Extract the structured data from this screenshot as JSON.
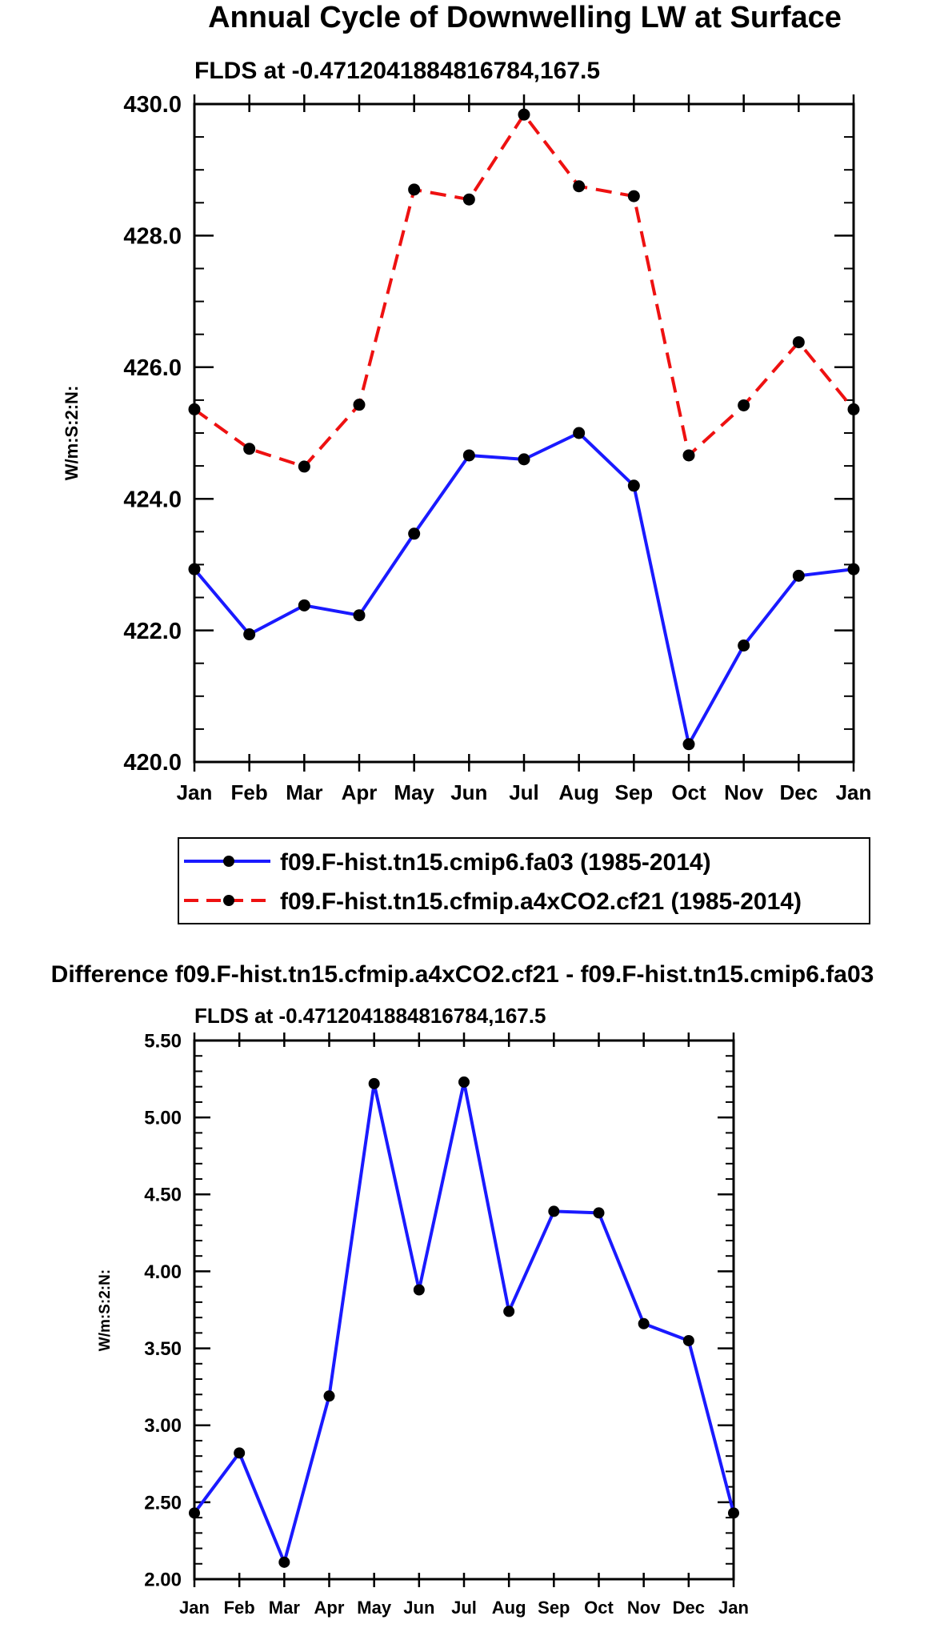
{
  "page_title": "Annual Cycle of Downwelling LW at Surface",
  "chart_data": [
    {
      "type": "line",
      "title": "FLDS at -0.4712041884816784,167.5",
      "xlabel": "",
      "ylabel": "W/m:S:2:N:",
      "categories": [
        "Jan",
        "Feb",
        "Mar",
        "Apr",
        "May",
        "Jun",
        "Jul",
        "Aug",
        "Sep",
        "Oct",
        "Nov",
        "Dec",
        "Jan"
      ],
      "ylim": [
        420,
        430
      ],
      "yticks": [
        420,
        422,
        424,
        426,
        428,
        430
      ],
      "ytick_labels": [
        "420.0",
        "422.0",
        "424.0",
        "426.0",
        "428.0",
        "430.0"
      ],
      "series": [
        {
          "name": "f09.F-hist.tn15.cmip6.fa03 (1985-2014)",
          "color": "#1a1aff",
          "dash": "solid",
          "values": [
            422.93,
            421.94,
            422.38,
            422.23,
            423.47,
            424.66,
            424.6,
            425.0,
            424.2,
            420.27,
            421.77,
            422.83,
            422.93
          ]
        },
        {
          "name": "f09.F-hist.tn15.cfmip.a4xCO2.cf21 (1985-2014)",
          "color": "#ee1111",
          "dash": "dashed",
          "values": [
            425.36,
            424.76,
            424.49,
            425.43,
            428.7,
            428.55,
            429.84,
            428.75,
            428.6,
            424.66,
            425.42,
            426.38,
            425.36
          ]
        }
      ]
    },
    {
      "type": "line",
      "suptitle": "Difference f09.F-hist.tn15.cfmip.a4xCO2.cf21 - f09.F-hist.tn15.cmip6.fa03",
      "title": "FLDS at -0.4712041884816784,167.5",
      "xlabel": "",
      "ylabel": "W/m:S:2:N:",
      "categories": [
        "Jan",
        "Feb",
        "Mar",
        "Apr",
        "May",
        "Jun",
        "Jul",
        "Aug",
        "Sep",
        "Oct",
        "Nov",
        "Dec",
        "Jan"
      ],
      "ylim": [
        2.0,
        5.5
      ],
      "yticks": [
        2.0,
        2.5,
        3.0,
        3.5,
        4.0,
        4.5,
        5.0,
        5.5
      ],
      "ytick_labels": [
        "2.00",
        "2.50",
        "3.00",
        "3.50",
        "4.00",
        "4.50",
        "5.00",
        "5.50"
      ],
      "series": [
        {
          "name": "difference",
          "color": "#1a1aff",
          "dash": "solid",
          "values": [
            2.43,
            2.82,
            2.11,
            3.19,
            5.22,
            3.88,
            5.23,
            3.74,
            4.39,
            4.38,
            3.66,
            3.55,
            2.43
          ]
        }
      ]
    }
  ]
}
